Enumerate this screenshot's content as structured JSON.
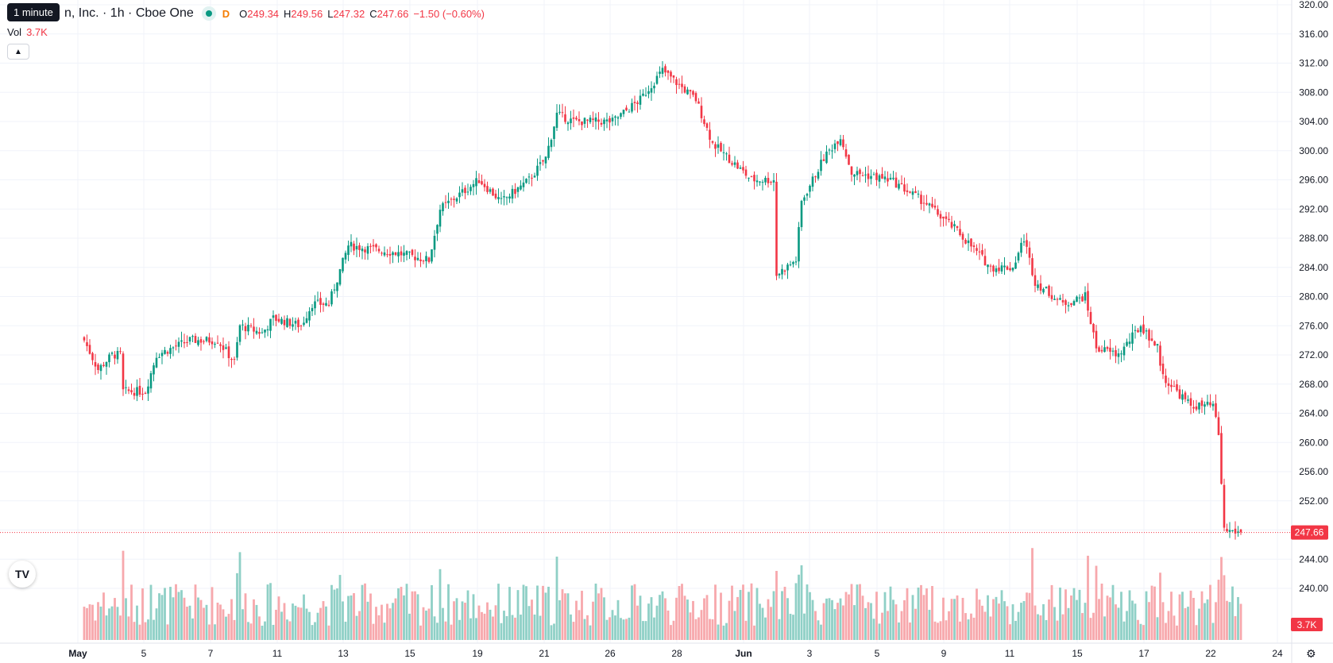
{
  "header": {
    "tooltip": "1 minute",
    "symbol_title": "n, Inc. · 1h · Cboe One",
    "delay_badge": "D",
    "ohlc": [
      {
        "key": "O",
        "value": "249.34"
      },
      {
        "key": "H",
        "value": "249.56"
      },
      {
        "key": "L",
        "value": "247.32"
      },
      {
        "key": "C",
        "value": "247.66"
      },
      {
        "key": "",
        "value": "−1.50 (−0.60%)"
      }
    ]
  },
  "volume_legend": {
    "label": "Vol",
    "value": "3.7K"
  },
  "icons": {
    "collapse": "chevron-up-icon",
    "logo": "tradingview-logo",
    "settings": "gear-icon"
  },
  "colors": {
    "up": "#089981",
    "down": "#f23645",
    "vol_up": "#8fd0c6",
    "vol_down": "#f7a8ac",
    "grid": "#f0f3fa"
  },
  "chart_data": {
    "type": "candlestick",
    "timeframe": "1h",
    "price_axis": {
      "min": 240,
      "max": 320,
      "ticks": [
        "320.00",
        "316.00",
        "312.00",
        "308.00",
        "304.00",
        "300.00",
        "296.00",
        "292.00",
        "288.00",
        "284.00",
        "280.00",
        "276.00",
        "272.00",
        "268.00",
        "264.00",
        "260.00",
        "256.00",
        "252.00",
        "248.00",
        "244.00",
        "240.00"
      ]
    },
    "x_ticks": [
      {
        "label": "May",
        "bold": true
      },
      {
        "label": "5"
      },
      {
        "label": "7"
      },
      {
        "label": "11"
      },
      {
        "label": "13"
      },
      {
        "label": "15"
      },
      {
        "label": "19"
      },
      {
        "label": "21"
      },
      {
        "label": "26"
      },
      {
        "label": "28"
      },
      {
        "label": "Jun",
        "bold": true
      },
      {
        "label": "3"
      },
      {
        "label": "5"
      },
      {
        "label": "9"
      },
      {
        "label": "11"
      },
      {
        "label": "15"
      },
      {
        "label": "17"
      },
      {
        "label": "22"
      },
      {
        "label": "24"
      }
    ],
    "last_price": {
      "value": 247.66,
      "label": "247.66"
    },
    "last_volume": {
      "label": "3.7K"
    },
    "segments": [
      [
        0,
        274
      ],
      [
        5,
        270
      ],
      [
        10,
        272
      ],
      [
        13,
        272
      ],
      [
        14,
        267
      ],
      [
        22,
        267
      ],
      [
        26,
        272
      ],
      [
        38,
        274
      ],
      [
        48,
        274
      ],
      [
        54,
        271
      ],
      [
        56,
        276
      ],
      [
        64,
        275
      ],
      [
        68,
        277
      ],
      [
        78,
        276
      ],
      [
        82,
        279
      ],
      [
        88,
        279
      ],
      [
        95,
        287
      ],
      [
        112,
        286
      ],
      [
        124,
        285
      ],
      [
        128,
        292
      ],
      [
        142,
        296
      ],
      [
        150,
        293
      ],
      [
        160,
        296
      ],
      [
        166,
        299
      ],
      [
        170,
        305
      ],
      [
        176,
        304
      ],
      [
        190,
        304
      ],
      [
        200,
        307
      ],
      [
        208,
        311
      ],
      [
        220,
        307
      ],
      [
        226,
        301
      ],
      [
        240,
        296
      ],
      [
        248,
        296
      ],
      [
        249,
        283
      ],
      [
        256,
        285
      ],
      [
        258,
        293
      ],
      [
        266,
        299
      ],
      [
        272,
        302
      ],
      [
        276,
        297
      ],
      [
        290,
        296
      ],
      [
        302,
        293
      ],
      [
        314,
        289
      ],
      [
        326,
        284
      ],
      [
        334,
        284
      ],
      [
        338,
        288
      ],
      [
        342,
        282
      ],
      [
        352,
        279
      ],
      [
        360,
        280
      ],
      [
        364,
        273
      ],
      [
        372,
        272
      ],
      [
        380,
        276
      ],
      [
        386,
        273
      ],
      [
        388,
        269
      ],
      [
        398,
        265
      ],
      [
        406,
        265
      ],
      [
        408,
        261
      ],
      [
        410,
        248
      ],
      [
        416,
        247.66
      ]
    ],
    "volume_max": 6000
  }
}
